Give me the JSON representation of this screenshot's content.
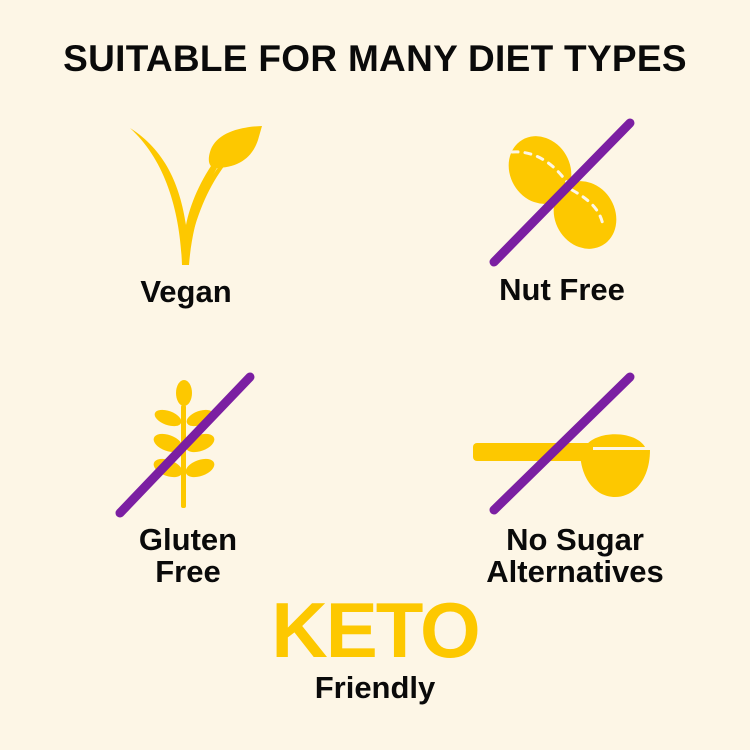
{
  "title": "SUITABLE FOR MANY DIET TYPES",
  "items": [
    {
      "label": "Vegan",
      "icon": "vegan-v-leaf-icon",
      "crossed": false
    },
    {
      "label": "Nut Free",
      "icon": "nut-icon",
      "crossed": true
    },
    {
      "label_line1": "Gluten",
      "label_line2": "Free",
      "icon": "wheat-icon",
      "crossed": true
    },
    {
      "label_line1": "No Sugar",
      "label_line2": "Alternatives",
      "icon": "scoop-icon",
      "crossed": true
    }
  ],
  "keto": {
    "headline": "KETO",
    "subline": "Friendly"
  },
  "colors": {
    "background": "#fdf6e6",
    "icon": "#fdc800",
    "slash": "#7b1fa2",
    "text": "#0a0a0a"
  }
}
